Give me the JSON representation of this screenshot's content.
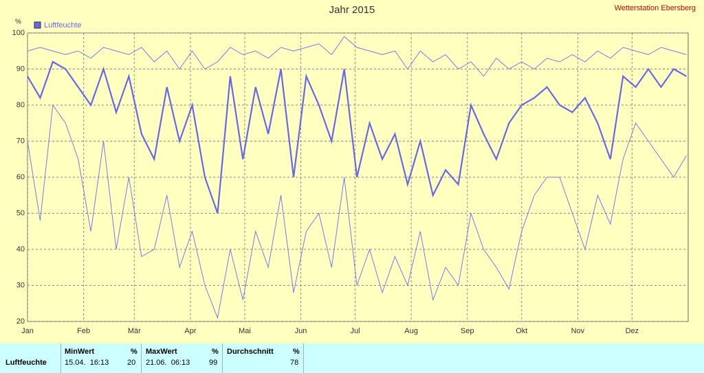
{
  "chart_data": {
    "type": "line",
    "title": "Jahr 2015",
    "station": "Wetterstation Ebersberg",
    "y_unit": "%",
    "x": [
      0,
      7,
      14,
      21,
      28,
      35,
      42,
      49,
      56,
      63,
      70,
      77,
      84,
      91,
      98,
      105,
      112,
      119,
      126,
      133,
      140,
      147,
      154,
      161,
      168,
      175,
      182,
      189,
      196,
      203,
      210,
      217,
      224,
      231,
      238,
      245,
      252,
      259,
      266,
      273,
      280,
      287,
      294,
      301,
      308,
      315,
      322,
      329,
      336,
      343,
      350,
      357,
      364
    ],
    "series": [
      {
        "name": "Luftfeuchte",
        "color": "#6666ee",
        "width": 2.2,
        "values": [
          88,
          82,
          92,
          90,
          85,
          80,
          90,
          78,
          88,
          72,
          65,
          85,
          70,
          80,
          60,
          50,
          88,
          65,
          85,
          72,
          90,
          60,
          88,
          80,
          70,
          90,
          60,
          75,
          65,
          72,
          58,
          70,
          55,
          62,
          58,
          80,
          72,
          65,
          75,
          80,
          82,
          85,
          80,
          78,
          82,
          75,
          65,
          88,
          85,
          90,
          85,
          90,
          88
        ]
      },
      {
        "color": "#7777ee",
        "width": 1,
        "values": [
          95,
          96,
          95,
          94,
          95,
          93,
          96,
          95,
          94,
          96,
          92,
          95,
          90,
          95,
          90,
          92,
          96,
          94,
          95,
          93,
          96,
          95,
          96,
          97,
          94,
          99,
          96,
          95,
          94,
          95,
          90,
          95,
          92,
          94,
          90,
          92,
          88,
          93,
          90,
          92,
          90,
          93,
          92,
          94,
          92,
          95,
          93,
          96,
          95,
          94,
          96,
          95,
          94
        ]
      },
      {
        "color": "#7777ee",
        "width": 1,
        "values": [
          70,
          48,
          80,
          75,
          65,
          45,
          70,
          40,
          60,
          38,
          40,
          55,
          35,
          45,
          30,
          21,
          40,
          26,
          45,
          35,
          55,
          28,
          45,
          50,
          35,
          60,
          30,
          40,
          28,
          38,
          30,
          45,
          26,
          35,
          30,
          50,
          40,
          35,
          29,
          45,
          55,
          60,
          60,
          50,
          40,
          55,
          47,
          65,
          75,
          70,
          65,
          60,
          66
        ]
      }
    ],
    "xlim": [
      0,
      365
    ],
    "xticks": [
      {
        "value": 0,
        "label": "Jan"
      },
      {
        "value": 31,
        "label": "Feb"
      },
      {
        "value": 59,
        "label": "Mär"
      },
      {
        "value": 90,
        "label": "Apr"
      },
      {
        "value": 120,
        "label": "Mai"
      },
      {
        "value": 151,
        "label": "Jun"
      },
      {
        "value": 181,
        "label": "Jul"
      },
      {
        "value": 212,
        "label": "Aug"
      },
      {
        "value": 243,
        "label": "Sep"
      },
      {
        "value": 273,
        "label": "Okt"
      },
      {
        "value": 304,
        "label": "Nov"
      },
      {
        "value": 334,
        "label": "Dez"
      }
    ],
    "ylim": [
      20,
      100
    ],
    "yticks": [
      20,
      30,
      40,
      50,
      60,
      70,
      80,
      90,
      100
    ],
    "grid": true
  },
  "table": {
    "headers": [
      "MinWert",
      "%",
      "MaxWert",
      "%",
      "Durchschnitt",
      "%"
    ],
    "rows": [
      [
        "Luftfeuchte",
        "15.04.  16:13",
        20,
        "21.06.  06:13",
        99,
        78
      ]
    ]
  }
}
